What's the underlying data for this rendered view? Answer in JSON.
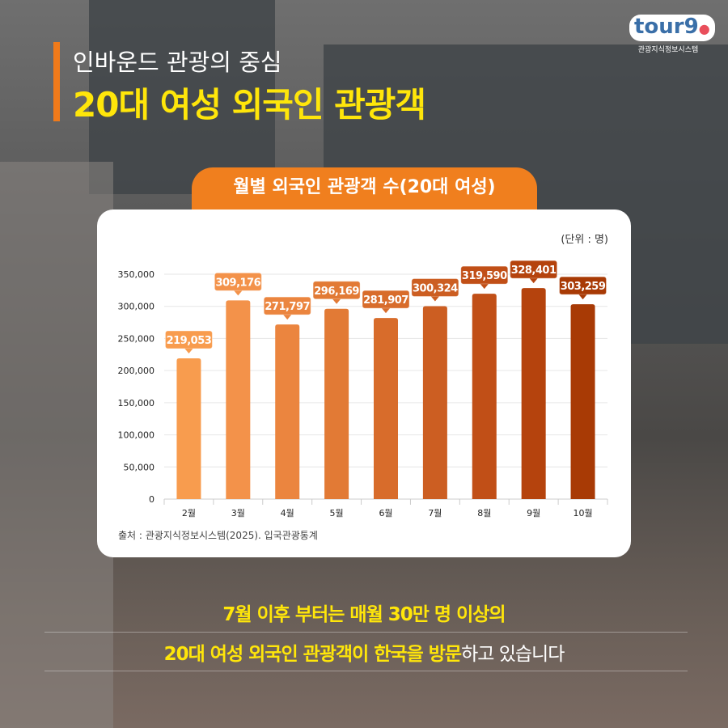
{
  "header": {
    "subtitle": "인바운드 관광의 중심",
    "title": "20대 여성 외국인 관광객"
  },
  "logo": {
    "word": "tour9",
    "caption": "관광지식정보시스템"
  },
  "chart_title": "월별 외국인 관광객 수(20대 여성)",
  "unit": "(단위 : 명)",
  "source": "출처 : 관광지식정보시스템(2025). 입국관광통계",
  "chart_data": {
    "type": "bar",
    "categories": [
      "2월",
      "3월",
      "4월",
      "5월",
      "6월",
      "7월",
      "8월",
      "9월",
      "10월"
    ],
    "values": [
      219053,
      309176,
      271797,
      296169,
      281907,
      300324,
      319590,
      328401,
      303259
    ],
    "value_labels": [
      "219,053",
      "309,176",
      "271,797",
      "296,169",
      "281,907",
      "300,324",
      "319,590",
      "328,401",
      "303,259"
    ],
    "yticks": [
      "0",
      "50,000",
      "100,000",
      "150,000",
      "200,000",
      "250,000",
      "300,000",
      "350,000"
    ],
    "ylim": [
      0,
      350000
    ],
    "grid": true,
    "colors": [
      "#f89c4e",
      "#f3924a",
      "#eb853f",
      "#e27a35",
      "#d86c2b",
      "#cc5e22",
      "#c14f17",
      "#b5430d",
      "#a83a05"
    ]
  },
  "footer": {
    "line1": "7월 이후 부터는 매월 30만 명 이상의",
    "line2_highlight": "20대 여성 외국인 관광객이 한국을 방문",
    "line2_rest": "하고 있습니다"
  }
}
